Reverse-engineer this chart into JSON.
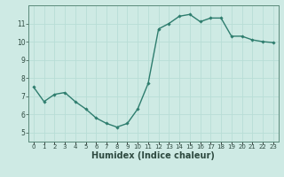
{
  "x": [
    0,
    1,
    2,
    3,
    4,
    5,
    6,
    7,
    8,
    9,
    10,
    11,
    12,
    13,
    14,
    15,
    16,
    17,
    18,
    19,
    20,
    21,
    22,
    23
  ],
  "y": [
    7.5,
    6.7,
    7.1,
    7.2,
    6.7,
    6.3,
    5.8,
    5.5,
    5.3,
    5.5,
    6.3,
    7.7,
    10.7,
    11.0,
    11.4,
    11.5,
    11.1,
    11.3,
    11.3,
    10.3,
    10.3,
    10.1,
    10.0,
    9.95
  ],
  "line_color": "#2e7d6e",
  "marker": "D",
  "marker_size": 1.8,
  "line_width": 1.0,
  "xlabel": "Humidex (Indice chaleur)",
  "xlabel_fontsize": 7,
  "ylim": [
    4.5,
    12.0
  ],
  "xlim": [
    -0.5,
    23.5
  ],
  "yticks": [
    5,
    6,
    7,
    8,
    9,
    10,
    11
  ],
  "xticks": [
    0,
    1,
    2,
    3,
    4,
    5,
    6,
    7,
    8,
    9,
    10,
    11,
    12,
    13,
    14,
    15,
    16,
    17,
    18,
    19,
    20,
    21,
    22,
    23
  ],
  "xtick_labels": [
    "0",
    "1",
    "2",
    "3",
    "4",
    "5",
    "6",
    "7",
    "8",
    "9",
    "10",
    "11",
    "12",
    "13",
    "14",
    "15",
    "16",
    "17",
    "18",
    "19",
    "20",
    "21",
    "22",
    "23"
  ],
  "grid_color": "#b8ddd6",
  "bg_color": "#ceeae4",
  "spine_color": "#5a8a7a",
  "tick_color": "#2e4a40",
  "xlabel_color": "#2e4a40"
}
